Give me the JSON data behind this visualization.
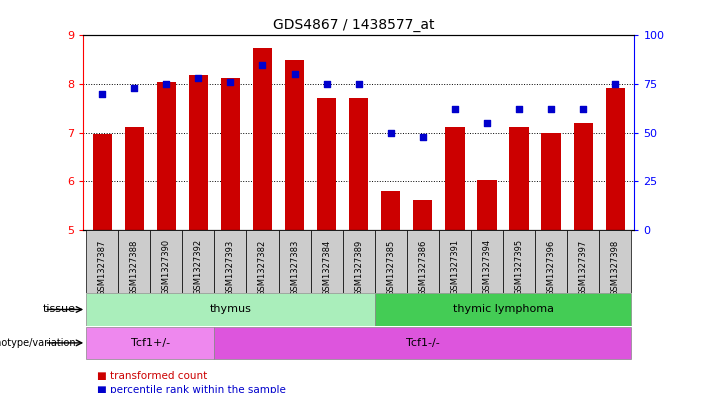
{
  "title": "GDS4867 / 1438577_at",
  "samples": [
    "GSM1327387",
    "GSM1327388",
    "GSM1327390",
    "GSM1327392",
    "GSM1327393",
    "GSM1327382",
    "GSM1327383",
    "GSM1327384",
    "GSM1327389",
    "GSM1327385",
    "GSM1327386",
    "GSM1327391",
    "GSM1327394",
    "GSM1327395",
    "GSM1327396",
    "GSM1327397",
    "GSM1327398"
  ],
  "bar_values": [
    6.97,
    7.12,
    8.05,
    8.18,
    8.12,
    8.74,
    8.5,
    7.72,
    7.72,
    5.8,
    5.62,
    7.12,
    6.03,
    7.12,
    7.0,
    7.2,
    7.92
  ],
  "percentile_values": [
    70,
    73,
    75,
    78,
    76,
    85,
    80,
    75,
    75,
    50,
    48,
    62,
    55,
    62,
    62,
    62,
    75
  ],
  "ylim_left": [
    5,
    9
  ],
  "ylim_right": [
    0,
    100
  ],
  "yticks_left": [
    5,
    6,
    7,
    8,
    9
  ],
  "yticks_right": [
    0,
    25,
    50,
    75,
    100
  ],
  "bar_color": "#CC0000",
  "dot_color": "#0000CC",
  "tissue_groups": [
    {
      "label": "thymus",
      "start": 0,
      "end": 8,
      "color": "#AAEEBB"
    },
    {
      "label": "thymic lymphoma",
      "start": 9,
      "end": 16,
      "color": "#44CC55"
    }
  ],
  "genotype_groups": [
    {
      "label": "Tcf1+/-",
      "start": 0,
      "end": 3,
      "color": "#EE88EE"
    },
    {
      "label": "Tcf1-/-",
      "start": 4,
      "end": 16,
      "color": "#DD55DD"
    }
  ],
  "tissue_label": "tissue",
  "genotype_label": "genotype/variation",
  "legend_bar": "transformed count",
  "legend_dot": "percentile rank within the sample",
  "xtick_bg": "#CCCCCC",
  "sample_label_fontsize": 6
}
